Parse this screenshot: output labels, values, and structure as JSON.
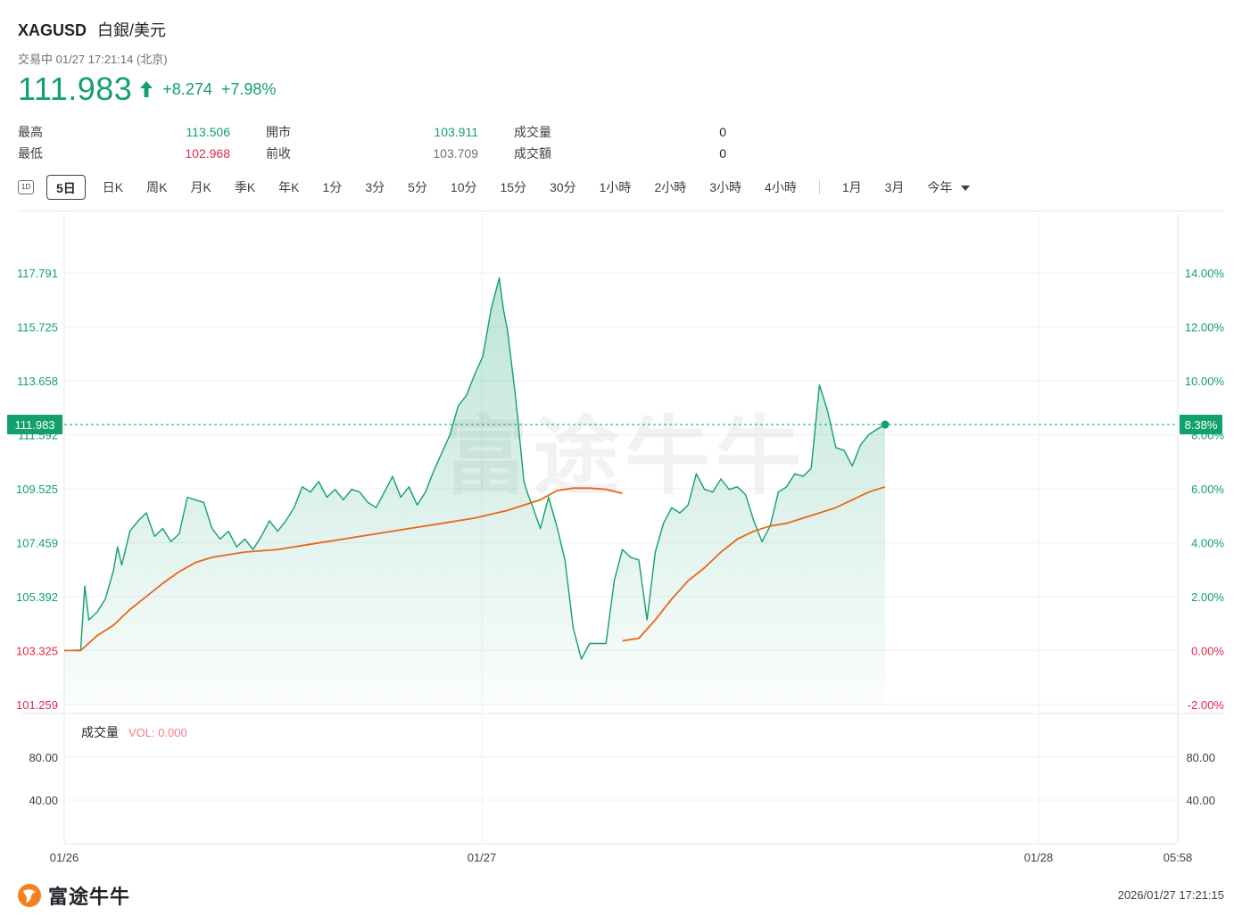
{
  "header": {
    "symbol": "XAGUSD",
    "name": "白銀/美元",
    "status": "交易中 01/27 17:21:14 (北京)",
    "price": "111.983",
    "change": "+8.274",
    "change_pct": "+7.98%"
  },
  "stats": {
    "high_label": "最高",
    "high_value": "113.506",
    "open_label": "開市",
    "open_value": "103.911",
    "volume_label": "成交量",
    "volume_value": "0",
    "low_label": "最低",
    "low_value": "102.968",
    "prev_close_label": "前收",
    "prev_close_value": "103.709",
    "turnover_label": "成交額",
    "turnover_value": "0"
  },
  "periods": {
    "icon": "1D",
    "items": [
      "5日",
      "日K",
      "周K",
      "月K",
      "季K",
      "年K",
      "1分",
      "3分",
      "5分",
      "10分",
      "15分",
      "30分",
      "1小時",
      "2小時",
      "3小時",
      "4小時"
    ],
    "extra": [
      "1月",
      "3月"
    ],
    "dropdown": "今年",
    "active": "5日"
  },
  "watermark": "富途牛牛",
  "footer": {
    "logo_text": "富途牛牛",
    "timestamp": "2026/01/27 17:21:15"
  },
  "colors": {
    "up": "#12a06c",
    "down": "#e0294a",
    "ma": "#e8661a",
    "area": "#12a06c"
  },
  "chart_data": {
    "type": "area",
    "price_axis_ticks": [
      "117.791",
      "115.725",
      "113.658",
      "111.592",
      "109.525",
      "107.459",
      "105.392",
      "103.325",
      "101.259"
    ],
    "pct_axis_ticks": [
      "14.00%",
      "12.00%",
      "10.00%",
      "8.00%",
      "6.00%",
      "4.00%",
      "2.00%",
      "0.00%",
      "-2.00%"
    ],
    "ylim": [
      101.259,
      117.791
    ],
    "prev_close": 103.709,
    "current_price_label": "111.983",
    "current_pct_label": "8.38%",
    "x_ticks": [
      "01/26",
      "01/27",
      "01/28",
      "05:58"
    ],
    "volume_panel": {
      "label": "成交量",
      "vol_label": "VOL: 0.000",
      "ticks": [
        "80.00",
        "40.00"
      ]
    },
    "series": [
      {
        "kind": "price",
        "x": [
          0,
          0.02,
          0.025,
          0.03,
          0.04,
          0.05,
          0.06,
          0.065,
          0.07,
          0.08,
          0.09,
          0.1,
          0.11,
          0.12,
          0.13,
          0.14,
          0.15,
          0.16,
          0.17,
          0.18,
          0.19,
          0.2,
          0.21,
          0.22,
          0.23,
          0.24,
          0.25,
          0.26,
          0.27,
          0.28,
          0.29,
          0.3,
          0.31,
          0.32,
          0.33,
          0.34,
          0.35,
          0.36,
          0.37,
          0.38,
          0.39,
          0.4,
          0.41,
          0.42,
          0.43,
          0.44,
          0.45,
          0.46,
          0.47,
          0.48,
          0.49,
          0.5,
          0.51,
          0.52,
          0.53,
          0.535,
          0.54,
          0.55,
          0.56,
          0.565,
          0.57,
          0.58,
          0.59,
          0.6,
          0.61,
          0.62,
          0.63,
          0.64,
          0.65,
          0.66,
          0.67,
          0.68,
          0.69,
          0.7,
          0.71,
          0.72,
          0.73,
          0.74,
          0.75,
          0.76,
          0.77,
          0.78,
          0.79,
          0.8,
          0.81,
          0.82,
          0.83,
          0.84,
          0.85,
          0.86,
          0.87,
          0.88,
          0.89,
          0.9,
          0.91,
          0.92,
          0.93,
          0.94,
          0.95,
          0.96,
          0.97,
          0.98,
          0.99,
          1.0
        ],
        "values": [
          103.33,
          103.35,
          105.8,
          104.5,
          104.8,
          105.3,
          106.4,
          107.3,
          106.6,
          107.9,
          108.3,
          108.6,
          107.7,
          108.0,
          107.5,
          107.8,
          109.2,
          109.1,
          109.0,
          108.0,
          107.6,
          107.9,
          107.3,
          107.6,
          107.2,
          107.7,
          108.3,
          107.9,
          108.3,
          108.8,
          109.6,
          109.4,
          109.8,
          109.2,
          109.5,
          109.1,
          109.5,
          109.4,
          109.0,
          108.8,
          109.4,
          110.0,
          109.2,
          109.6,
          108.9,
          109.4,
          110.2,
          110.9,
          111.6,
          112.7,
          113.1,
          113.9,
          114.6,
          116.4,
          117.6,
          116.4,
          115.6,
          113.0,
          109.8,
          109.3,
          108.9,
          108.0,
          109.2,
          108.1,
          106.8,
          104.2,
          103.0,
          103.6,
          103.6,
          103.6,
          106.0,
          107.2,
          106.9,
          106.8,
          104.5,
          107.1,
          108.2,
          108.8,
          108.6,
          108.9,
          110.1,
          109.5,
          109.4,
          109.9,
          109.5,
          109.6,
          109.3,
          108.3,
          107.5,
          108.1,
          109.4,
          109.6,
          110.1,
          110.0,
          110.3,
          113.5,
          112.5,
          111.1,
          111.0,
          110.4,
          111.2,
          111.6,
          111.8,
          111.983
        ]
      },
      {
        "kind": "average",
        "x": [
          0,
          0.02,
          0.04,
          0.06,
          0.08,
          0.1,
          0.12,
          0.14,
          0.16,
          0.18,
          0.2,
          0.22,
          0.26,
          0.3,
          0.34,
          0.38,
          0.42,
          0.46,
          0.5,
          0.54,
          0.58,
          0.6,
          0.62,
          0.64,
          0.66,
          0.68
        ],
        "values": [
          103.33,
          103.33,
          103.9,
          104.3,
          104.9,
          105.4,
          105.9,
          106.35,
          106.7,
          106.9,
          107.0,
          107.1,
          107.2,
          107.4,
          107.6,
          107.8,
          108.0,
          108.2,
          108.4,
          108.7,
          109.1,
          109.45,
          109.55,
          109.55,
          109.5,
          109.35
        ]
      },
      {
        "kind": "average",
        "x": [
          0.68,
          0.7,
          0.72,
          0.74,
          0.76,
          0.78,
          0.8,
          0.82,
          0.84,
          0.86,
          0.88,
          0.9,
          0.92,
          0.94,
          0.96,
          0.98,
          1.0
        ],
        "values": [
          103.7,
          103.8,
          104.5,
          105.3,
          106.0,
          106.5,
          107.1,
          107.6,
          107.9,
          108.1,
          108.2,
          108.4,
          108.6,
          108.8,
          109.1,
          109.4,
          109.6
        ]
      }
    ],
    "grid": true
  }
}
